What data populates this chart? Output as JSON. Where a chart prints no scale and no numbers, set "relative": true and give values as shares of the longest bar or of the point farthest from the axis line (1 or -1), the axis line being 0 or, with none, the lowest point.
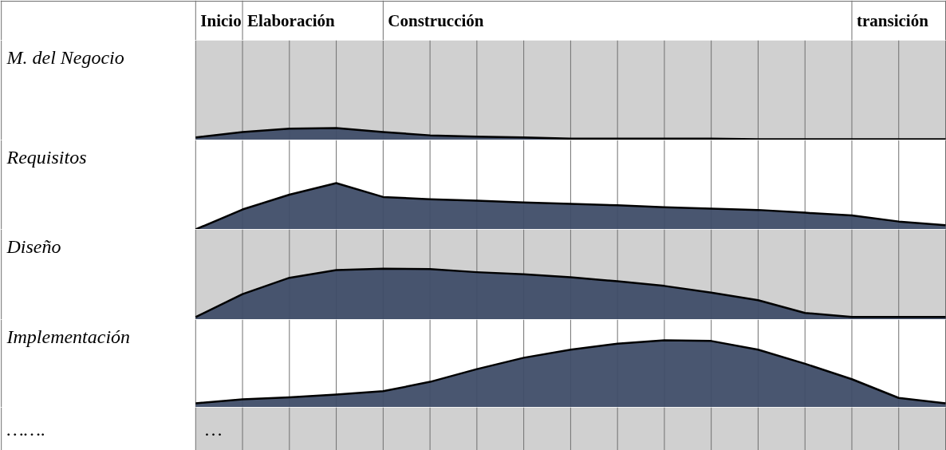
{
  "chart_data": [
    {
      "type": "area",
      "relative": true,
      "grid": "x",
      "annotations": [
        "Inicio",
        "Elaboración",
        "Construcción",
        "transición"
      ],
      "categories": [
        null,
        null,
        null,
        null,
        null,
        null,
        null,
        null,
        null,
        null,
        null,
        null,
        null,
        null,
        null,
        null,
        null
      ],
      "series": [
        {
          "name": "M. del Negocio",
          "color": "#3f4d68",
          "values": [
            0.22,
            0.67,
            0.94,
            1,
            0.67,
            0.39,
            0.28,
            0.22,
            0.11,
            0.11,
            0.11,
            0.11,
            0.06,
            0.06,
            0.06,
            0.06,
            0.06
          ]
        }
      ]
    },
    {
      "type": "area",
      "relative": true,
      "grid": "x",
      "categories": [
        null,
        null,
        null,
        null,
        null,
        null,
        null,
        null,
        null,
        null,
        null,
        null,
        null,
        null,
        null,
        null,
        null
      ],
      "series": [
        {
          "name": "Requisitos",
          "color": "#3f4d68",
          "values": [
            0,
            0.43,
            0.75,
            1,
            0.7,
            0.65,
            0.62,
            0.58,
            0.55,
            0.52,
            0.48,
            0.45,
            0.42,
            0.36,
            0.3,
            0.17,
            0.09
          ]
        }
      ]
    },
    {
      "type": "area",
      "relative": true,
      "grid": "x",
      "categories": [
        null,
        null,
        null,
        null,
        null,
        null,
        null,
        null,
        null,
        null,
        null,
        null,
        null,
        null,
        null,
        null,
        null
      ],
      "series": [
        {
          "name": "Diseño",
          "color": "#3f4d68",
          "values": [
            0.05,
            0.5,
            0.82,
            0.97,
            1,
            0.99,
            0.93,
            0.89,
            0.83,
            0.75,
            0.66,
            0.53,
            0.38,
            0.13,
            0.05,
            0.05,
            0.05
          ]
        }
      ]
    },
    {
      "type": "area",
      "relative": true,
      "grid": "x",
      "annotations": [
        "…….",
        "…"
      ],
      "categories": [
        null,
        null,
        null,
        null,
        null,
        null,
        null,
        null,
        null,
        null,
        null,
        null,
        null,
        null,
        null,
        null,
        null
      ],
      "series": [
        {
          "name": "Implementación",
          "color": "#3f4d68",
          "values": [
            0.06,
            0.12,
            0.15,
            0.19,
            0.24,
            0.38,
            0.57,
            0.74,
            0.86,
            0.95,
            1,
            0.99,
            0.86,
            0.65,
            0.42,
            0.14,
            0.06
          ]
        }
      ]
    }
  ]
}
